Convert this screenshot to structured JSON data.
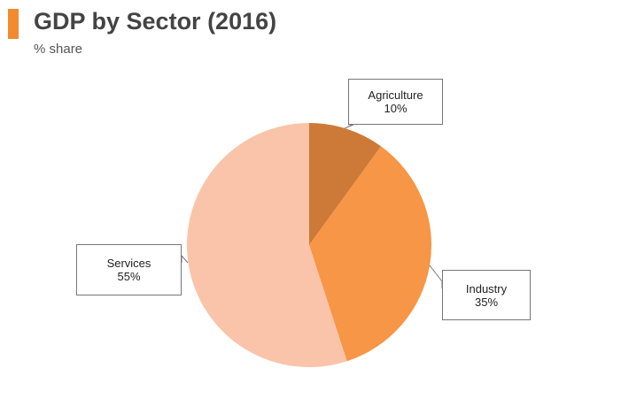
{
  "title": "GDP by Sector (2016)",
  "subtitle": "% share",
  "colors": {
    "accent": "#f28a30",
    "agriculture": "#cd7a38",
    "industry": "#f79646",
    "services": "#f9c4a9"
  },
  "chart_data": {
    "type": "pie",
    "title": "GDP by Sector (2016)",
    "subtitle": "% share",
    "slices": [
      {
        "label": "Agriculture",
        "value": 10,
        "value_label": "10%",
        "color": "#cd7a38"
      },
      {
        "label": "Industry",
        "value": 35,
        "value_label": "35%",
        "color": "#f79646"
      },
      {
        "label": "Services",
        "value": 55,
        "value_label": "55%",
        "color": "#f9c4a9"
      }
    ],
    "start_angle": "12 o'clock",
    "direction": "clockwise",
    "legend": "none",
    "data_labels": "callout boxes"
  }
}
